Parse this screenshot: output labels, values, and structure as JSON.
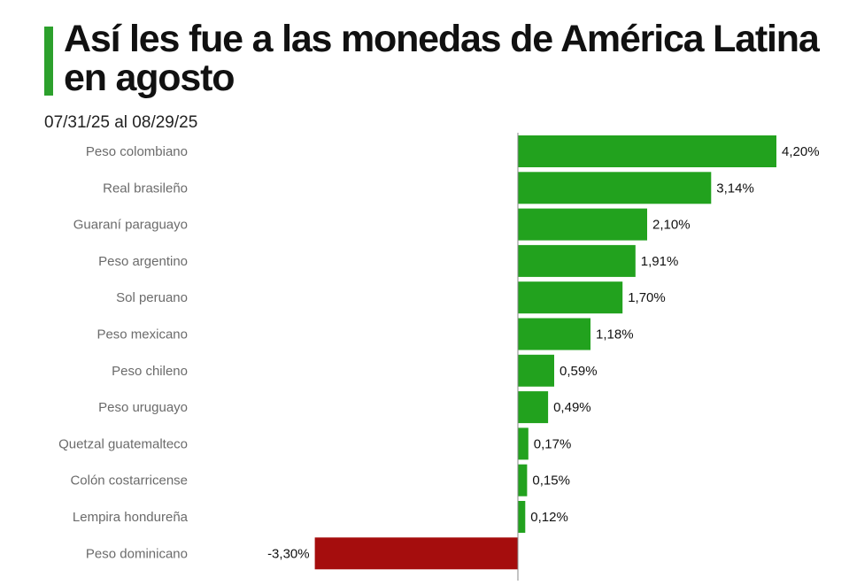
{
  "title": "Así les fue a las monedas de América Latina en agosto",
  "subtitle": "07/31/25 al 08/29/25",
  "colors": {
    "positive": "#22a21e",
    "negative": "#a50d0d",
    "accent": "#2ca02c",
    "axis": "#888888"
  },
  "chart_data": {
    "type": "bar",
    "orientation": "horizontal",
    "categories": [
      "Peso colombiano",
      "Real brasileño",
      "Guaraní paraguayo",
      "Peso argentino",
      "Sol peruano",
      "Peso mexicano",
      "Peso chileno",
      "Peso uruguayo",
      "Quetzal guatemalteco",
      "Colón costarricense",
      "Lempira hondureña",
      "Peso dominicano"
    ],
    "values": [
      4.2,
      3.14,
      2.1,
      1.91,
      1.7,
      1.18,
      0.59,
      0.49,
      0.17,
      0.15,
      0.12,
      -3.3
    ],
    "value_labels": [
      "4,20%",
      "3,14%",
      "2,10%",
      "1,91%",
      "1,70%",
      "1,18%",
      "0,59%",
      "0,49%",
      "0,17%",
      "0,15%",
      "0,12%",
      "-3,30%"
    ],
    "unit": "%",
    "xlim": [
      -3.3,
      4.2
    ],
    "grid": false,
    "legend": "none"
  }
}
